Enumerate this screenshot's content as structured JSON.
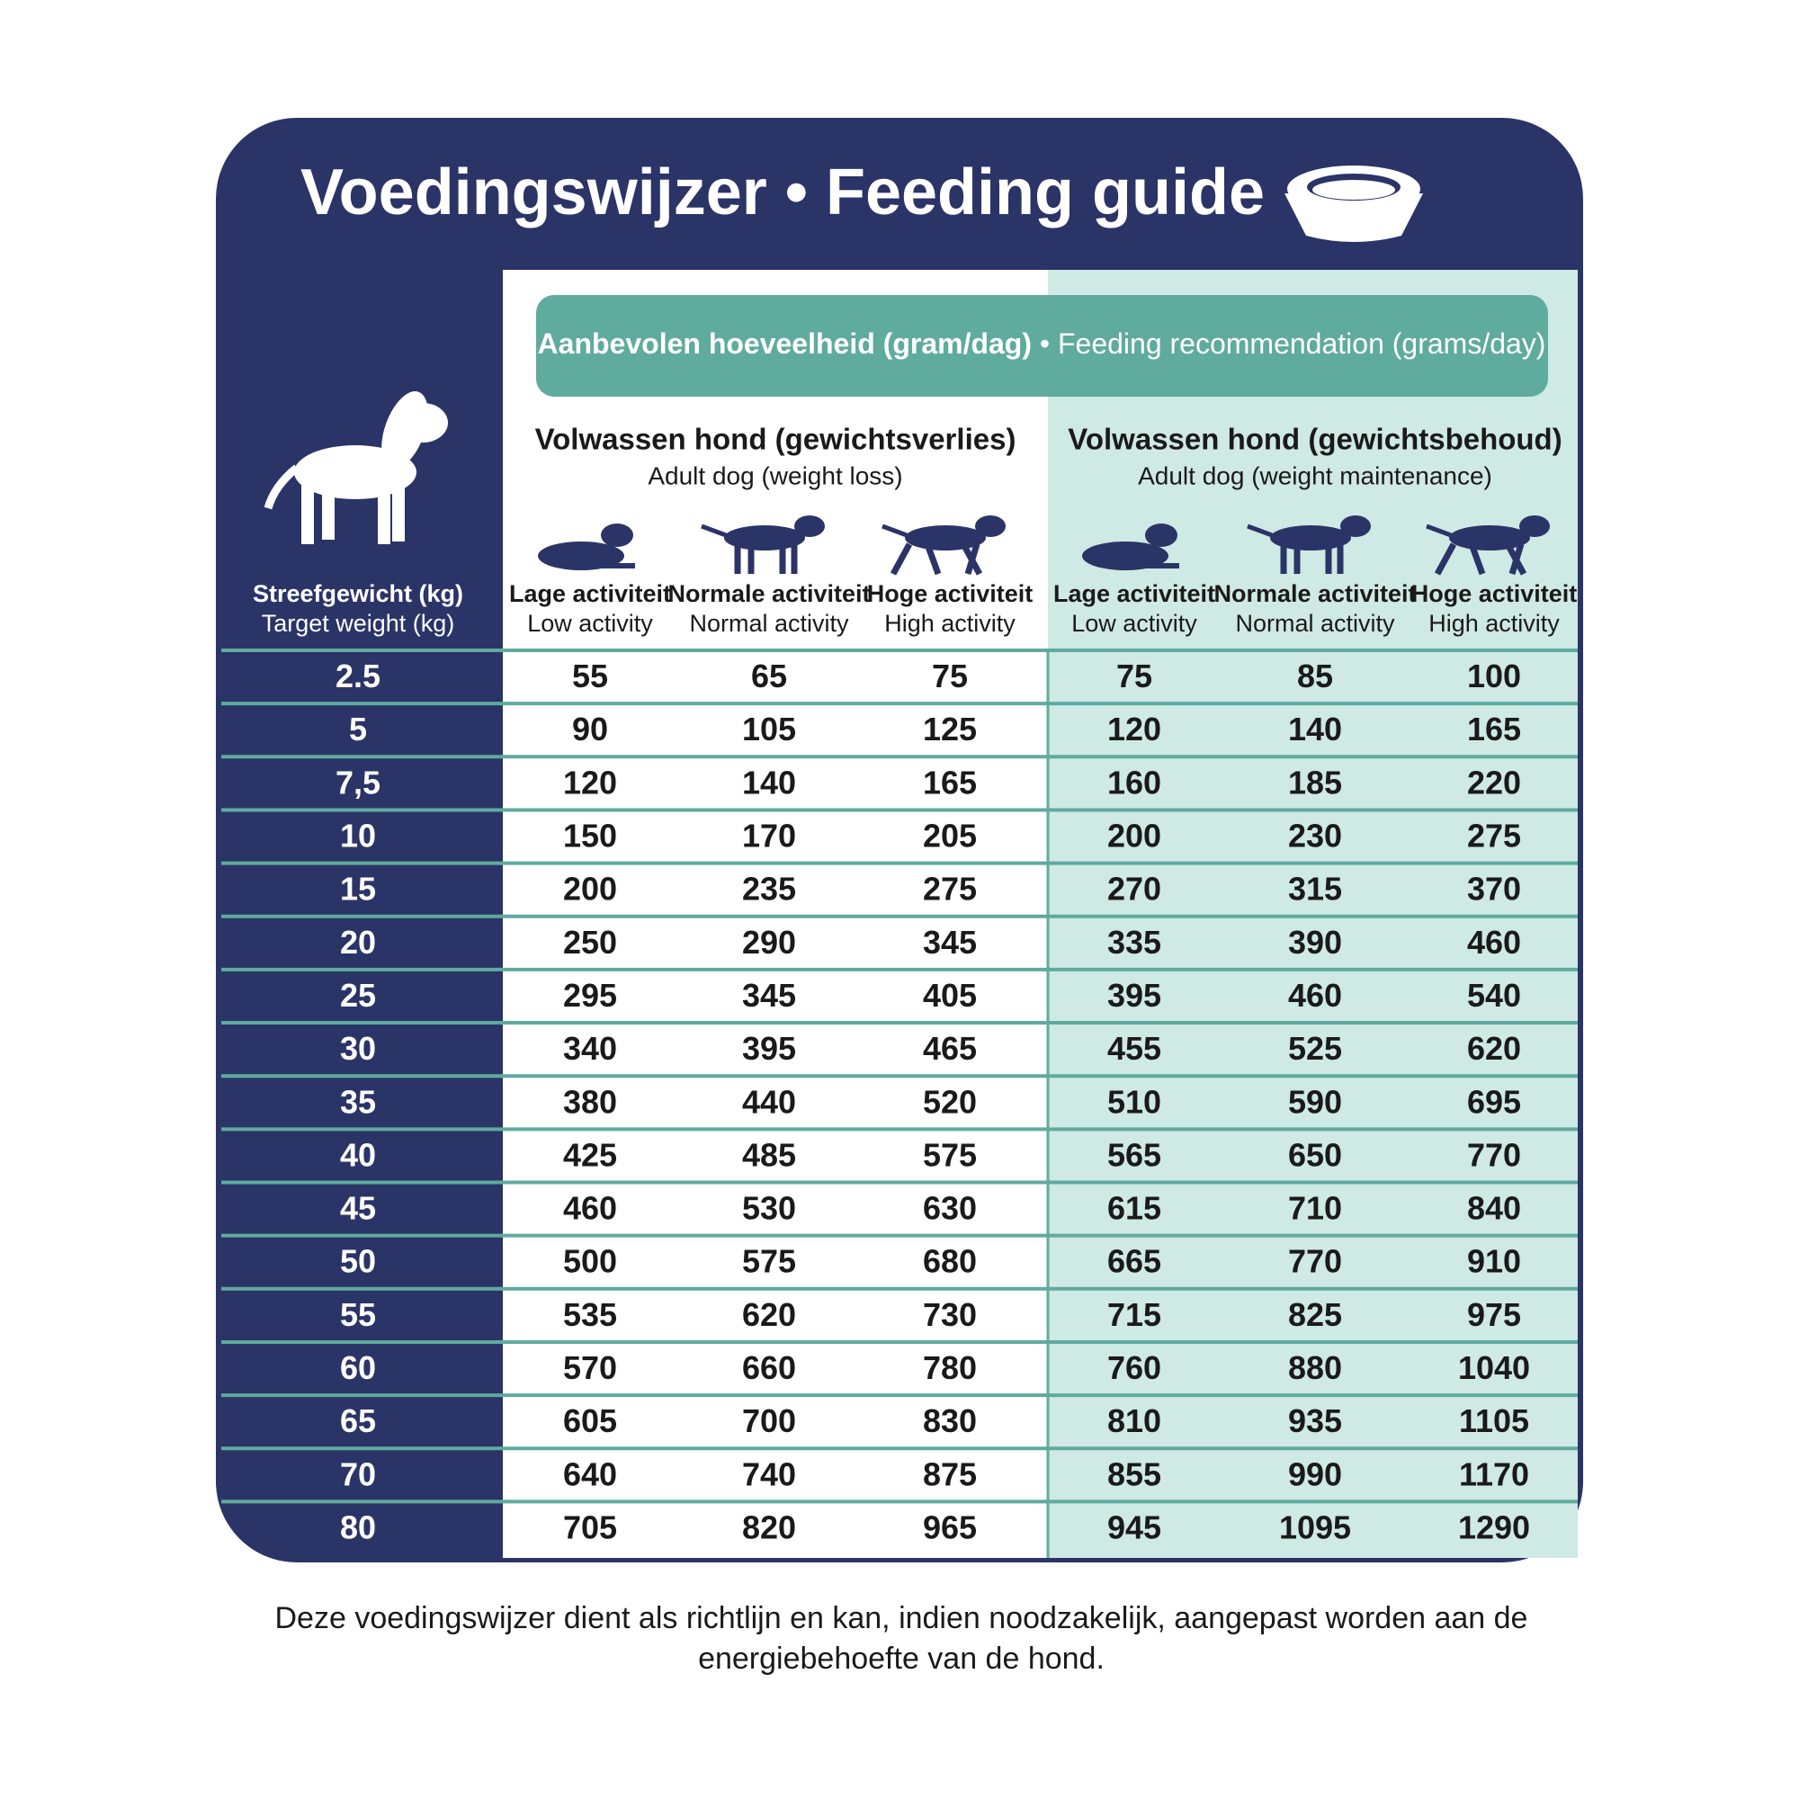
{
  "header": {
    "title": "Voedingswijzer • Feeding guide"
  },
  "recommendation": {
    "nl": "Aanbevolen hoeveelheid (gram/dag)",
    "separator": "•",
    "en": "Feeding recommendation (grams/day)"
  },
  "groups": [
    {
      "title": "Volwassen hond (gewichtsverlies)",
      "subtitle": "Adult dog (weight loss)"
    },
    {
      "title": "Volwassen hond (gewichtsbehoud)",
      "subtitle": "Adult dog (weight maintenance)"
    }
  ],
  "weight_header": {
    "nl": "Streefgewicht (kg)",
    "en": "Target weight (kg)"
  },
  "columns": [
    {
      "nl": "Lage activiteit",
      "en": "Low activity"
    },
    {
      "nl": "Normale activiteit",
      "en": "Normal activity"
    },
    {
      "nl": "Hoge activiteit",
      "en": "High activity"
    },
    {
      "nl": "Lage activiteit",
      "en": "Low activity"
    },
    {
      "nl": "Normale activiteit",
      "en": "Normal activity"
    },
    {
      "nl": "Hoge activiteit",
      "en": "High activity"
    }
  ],
  "table": {
    "rows": [
      [
        "2.5",
        55,
        65,
        75,
        75,
        85,
        100
      ],
      [
        "5",
        90,
        105,
        125,
        120,
        140,
        165
      ],
      [
        "7,5",
        120,
        140,
        165,
        160,
        185,
        220
      ],
      [
        "10",
        150,
        170,
        205,
        200,
        230,
        275
      ],
      [
        "15",
        200,
        235,
        275,
        270,
        315,
        370
      ],
      [
        "20",
        250,
        290,
        345,
        335,
        390,
        460
      ],
      [
        "25",
        295,
        345,
        405,
        395,
        460,
        540
      ],
      [
        "30",
        340,
        395,
        465,
        455,
        525,
        620
      ],
      [
        "35",
        380,
        440,
        520,
        510,
        590,
        695
      ],
      [
        "40",
        425,
        485,
        575,
        565,
        650,
        770
      ],
      [
        "45",
        460,
        530,
        630,
        615,
        710,
        840
      ],
      [
        "50",
        500,
        575,
        680,
        665,
        770,
        910
      ],
      [
        "55",
        535,
        620,
        730,
        715,
        825,
        975
      ],
      [
        "60",
        570,
        660,
        780,
        760,
        880,
        1040
      ],
      [
        "65",
        605,
        700,
        830,
        810,
        935,
        1105
      ],
      [
        "70",
        640,
        740,
        875,
        855,
        990,
        1170
      ],
      [
        "80",
        705,
        820,
        965,
        945,
        1095,
        1290
      ]
    ]
  },
  "footnote": [
    "Deze voedingswijzer dient als richtlijn en kan, indien noodzakelijk, aangepast worden aan de",
    "energiebehoefte van de hond."
  ]
}
